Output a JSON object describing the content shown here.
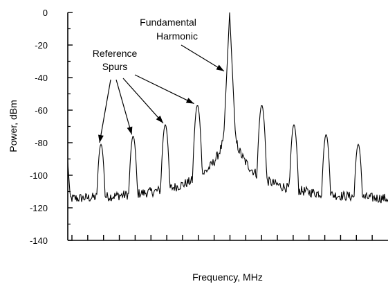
{
  "chart_data": {
    "type": "line",
    "title": "",
    "xlabel": "Frequency, MHz",
    "ylabel": "Power, dBm",
    "ylim": [
      -140,
      0
    ],
    "yticks": [
      0,
      -20,
      -40,
      -60,
      -80,
      -100,
      -120,
      -140
    ],
    "xticks_labeled": false,
    "x_tick_count": 21,
    "grid": false,
    "noise_floor": -119,
    "fundamental": {
      "position": 0,
      "power": 0
    },
    "spurs": [
      {
        "position": -4,
        "power": -83
      },
      {
        "position": -3,
        "power": -78
      },
      {
        "position": -2,
        "power": -71
      },
      {
        "position": -1,
        "power": -59
      },
      {
        "position": 1,
        "power": -59
      },
      {
        "position": 2,
        "power": -71
      },
      {
        "position": 3,
        "power": -77
      },
      {
        "position": 4,
        "power": -83
      }
    ],
    "annotations": {
      "fundamental": {
        "line1": "Fundamental",
        "line2": "Harmonic"
      },
      "reference": {
        "line1": "Reference",
        "line2": "Spurs"
      }
    },
    "line_color": "#000000"
  }
}
